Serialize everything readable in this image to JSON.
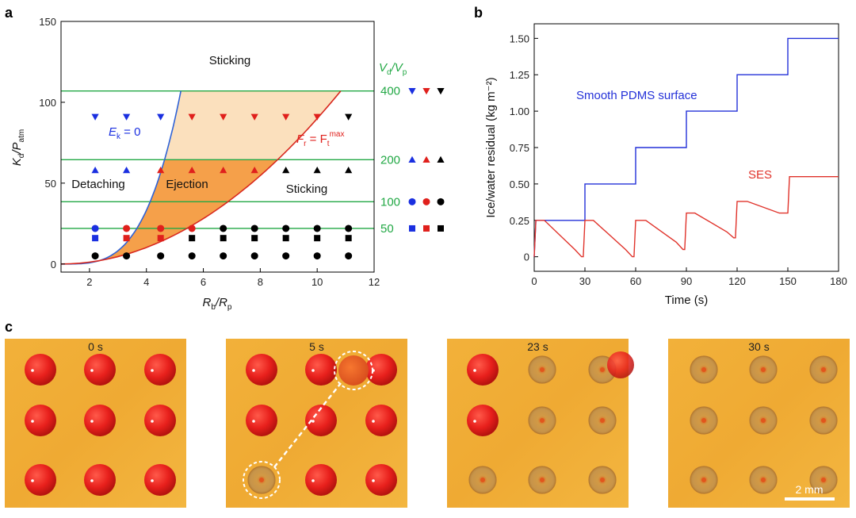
{
  "panels": {
    "a": "a",
    "b": "b",
    "c": "c"
  },
  "chart_data": [
    {
      "type": "scatter",
      "panel": "a",
      "xlabel": "R_b/R_p",
      "ylabel": "K_d/P_atm",
      "xlim": [
        1,
        12
      ],
      "ylim": [
        -5,
        150
      ],
      "x_ticks": [
        "2",
        "4",
        "6",
        "8",
        "10",
        "12"
      ],
      "y_ticks": [
        "0",
        "50",
        "100",
        "150"
      ],
      "regions": {
        "sticking_top": "Sticking",
        "detaching": "Detaching",
        "ejection": "Ejection",
        "sticking_right": "Sticking"
      },
      "curves": {
        "ek_label": "E",
        "ek_sub": "k",
        "ek_eq": " = 0",
        "fr_label": "F",
        "fr_sub": "r",
        "fr_eq": " = F",
        "fr_sub2": "t",
        "fr_sup": "max"
      },
      "vd_vp_header": {
        "v": "V",
        "sub1": "d",
        "slash": "/V",
        "sub2": "p"
      },
      "green_lines": [
        {
          "label": "400",
          "y": 107
        },
        {
          "label": "200",
          "y": 64.5
        },
        {
          "label": "100",
          "y": 38.5
        },
        {
          "label": "50",
          "y": 22
        }
      ],
      "x_positions": [
        2.2,
        3.3,
        4.5,
        5.6,
        6.7,
        7.8,
        8.9,
        10.0,
        11.1
      ],
      "rows": [
        {
          "marker": "triangle-down",
          "y": 91,
          "colors": [
            "blue",
            "blue",
            "blue",
            "red",
            "red",
            "red",
            "red",
            "red",
            "black"
          ]
        },
        {
          "marker": "triangle-up",
          "y": 58,
          "colors": [
            "blue",
            "blue",
            "red",
            "red",
            "red",
            "red",
            "black",
            "black",
            "black"
          ]
        },
        {
          "marker": "circle",
          "y": 22,
          "colors": [
            "blue",
            "red",
            "red",
            "red",
            "black",
            "black",
            "black",
            "black",
            "black"
          ]
        },
        {
          "marker": "square",
          "y": 16,
          "colors": [
            "blue",
            "red",
            "red",
            "black",
            "black",
            "black",
            "black",
            "black",
            "black"
          ]
        },
        {
          "marker": "circle",
          "y": 5,
          "colors": [
            "black",
            "black",
            "black",
            "black",
            "black",
            "black",
            "black",
            "black",
            "black"
          ]
        }
      ],
      "legend_markers": {
        "400": "triangle-down",
        "200": "triangle-up",
        "100": "circle",
        "50": "square"
      },
      "colors": {
        "blue": "#1a2fe0",
        "red": "#e0201c",
        "black": "#000000",
        "green": "#22a845",
        "orange_dark": "#f5a04a",
        "orange_light": "#fbe0bd"
      }
    },
    {
      "type": "line",
      "panel": "b",
      "xlabel": "Time (s)",
      "ylabel": "Ice/water residual (kg m⁻²)",
      "xlim": [
        0,
        180
      ],
      "ylim": [
        -0.1,
        1.6
      ],
      "x_ticks": [
        "0",
        "30",
        "60",
        "90",
        "120",
        "150",
        "180"
      ],
      "y_ticks": [
        "0",
        "0.25",
        "0.50",
        "0.75",
        "1.00",
        "1.25",
        "1.50"
      ],
      "series": [
        {
          "name": "Smooth PDMS surface",
          "color": "#2330d8",
          "x": [
            0,
            1,
            30,
            30,
            60,
            60,
            90,
            90,
            120,
            120,
            150,
            150,
            180
          ],
          "y": [
            0,
            0.25,
            0.25,
            0.5,
            0.5,
            0.75,
            0.75,
            1.0,
            1.0,
            1.25,
            1.25,
            1.5,
            1.5
          ]
        },
        {
          "name": "SES",
          "color": "#e0332b",
          "x": [
            0,
            1,
            6,
            24,
            28,
            29,
            30,
            35,
            54,
            58,
            59,
            60,
            66,
            84,
            88,
            89,
            90,
            95,
            114,
            118,
            119,
            120,
            126,
            145,
            150,
            151,
            155,
            180
          ],
          "y": [
            0,
            0.25,
            0.25,
            0.05,
            0.0,
            0.0,
            0.25,
            0.25,
            0.05,
            0.0,
            0.0,
            0.25,
            0.25,
            0.1,
            0.05,
            0.05,
            0.3,
            0.3,
            0.17,
            0.13,
            0.13,
            0.38,
            0.38,
            0.3,
            0.3,
            0.55,
            0.55,
            0.55
          ]
        }
      ]
    }
  ],
  "photos": {
    "frames": [
      {
        "time": "0 s",
        "state": [
          "full",
          "full",
          "full",
          "full",
          "full",
          "full",
          "full",
          "full",
          "full"
        ]
      },
      {
        "time": "5 s",
        "state": [
          "full",
          "full",
          "full",
          "full",
          "full",
          "full",
          "empty",
          "full",
          "full"
        ]
      },
      {
        "time": "23 s",
        "state": [
          "full",
          "empty",
          "empty",
          "full",
          "empty",
          "empty",
          "empty",
          "empty",
          "empty"
        ]
      },
      {
        "time": "30 s",
        "state": [
          "empty",
          "empty",
          "empty",
          "empty",
          "empty",
          "empty",
          "empty",
          "empty",
          "empty"
        ]
      }
    ],
    "scale_bar": "2 mm"
  }
}
